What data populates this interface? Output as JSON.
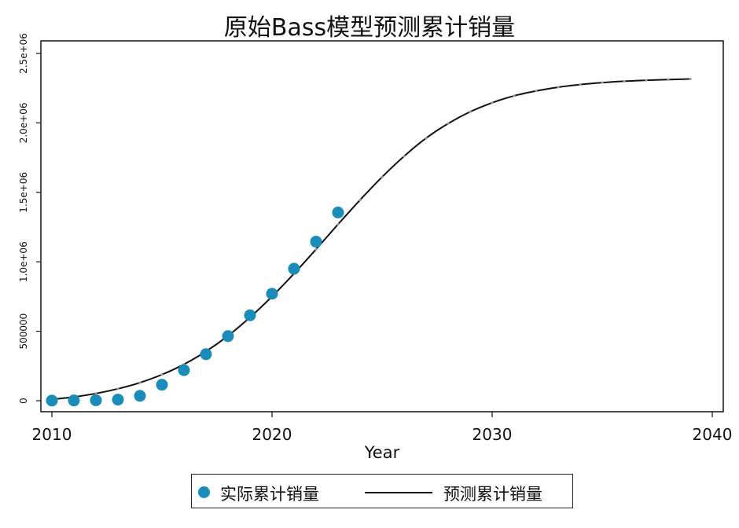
{
  "chart_data": {
    "type": "line",
    "title": "原始Bass模型预测累计销量",
    "xlabel": "Year",
    "ylabel": "",
    "xlim": [
      2010,
      2040
    ],
    "ylim": [
      0,
      2500000
    ],
    "x_ticks": [
      2010,
      2020,
      2030,
      2040
    ],
    "x_tick_labels": [
      "2010",
      "2020",
      "2030",
      "2040"
    ],
    "y_ticks": [
      0,
      500000,
      1000000,
      1500000,
      2000000,
      2500000
    ],
    "y_tick_labels": [
      "0",
      "500000",
      "1.0e+06",
      "1.5e+06",
      "2.0e+06",
      "2.5e+06"
    ],
    "grid": false,
    "legend_position": "bottom",
    "series": [
      {
        "name": "实际累计销量",
        "kind": "scatter",
        "color": "#1a8cba",
        "x": [
          2010,
          2011,
          2012,
          2013,
          2014,
          2015,
          2016,
          2017,
          2018,
          2019,
          2020,
          2021,
          2022,
          2023
        ],
        "values": [
          1000,
          2000,
          3000,
          8000,
          35000,
          115000,
          220000,
          335000,
          465000,
          615000,
          770000,
          950000,
          1145000,
          1355000
        ]
      },
      {
        "name": "预测累计销量",
        "kind": "line",
        "color": "#111111",
        "x": [
          2010,
          2011,
          2012,
          2013,
          2014,
          2015,
          2016,
          2017,
          2018,
          2019,
          2020,
          2021,
          2022,
          2023,
          2024,
          2025,
          2026,
          2027,
          2028,
          2029,
          2030,
          2031,
          2032,
          2033,
          2034,
          2035,
          2036,
          2037,
          2038,
          2039
        ],
        "values": [
          10000,
          27000,
          52000,
          86000,
          130000,
          188000,
          262000,
          355000,
          467000,
          600000,
          750000,
          915000,
          1090000,
          1270000,
          1445000,
          1610000,
          1760000,
          1890000,
          1995000,
          2080000,
          2145000,
          2195000,
          2230000,
          2257000,
          2276000,
          2290000,
          2300000,
          2307000,
          2312000,
          2316000
        ]
      }
    ]
  }
}
